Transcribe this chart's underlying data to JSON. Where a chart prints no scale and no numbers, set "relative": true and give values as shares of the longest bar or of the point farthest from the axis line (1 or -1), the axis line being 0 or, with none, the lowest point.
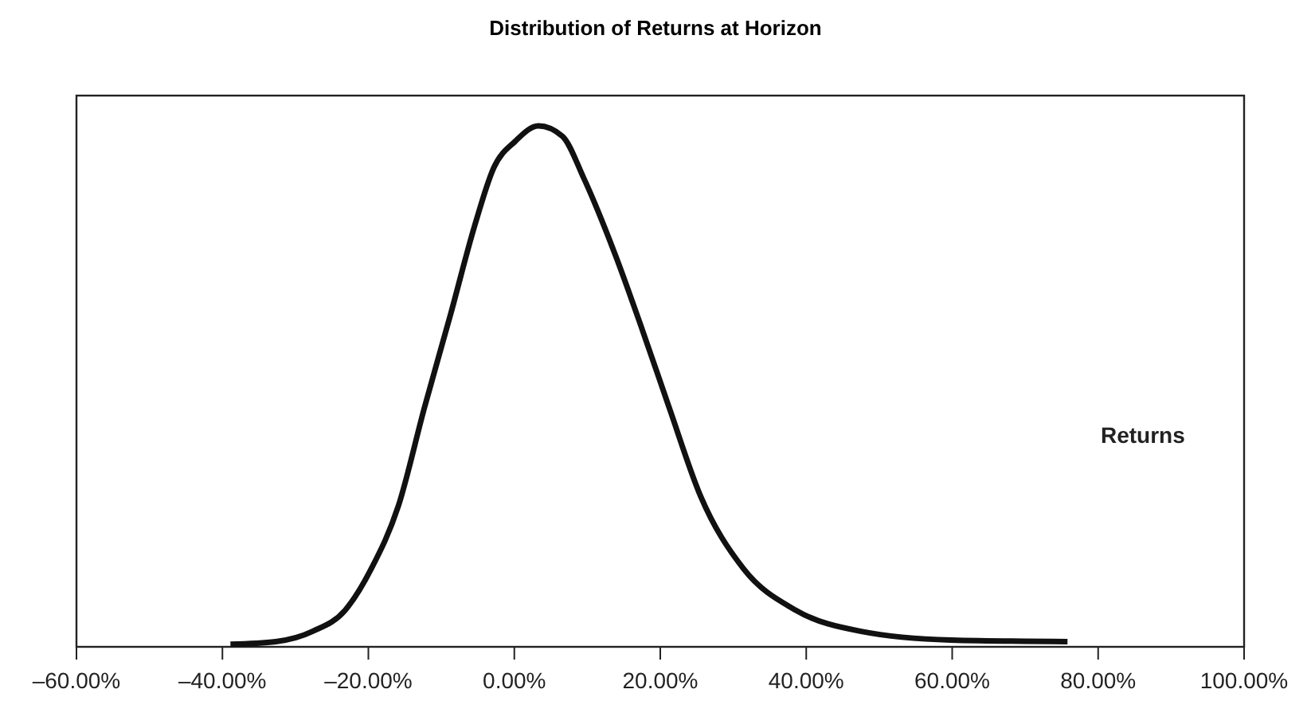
{
  "chart_data": {
    "type": "line",
    "title": "Distribution of Returns at Horizon",
    "relative": true,
    "legend": "right",
    "xlim": [
      -60,
      100
    ],
    "xticks": [
      {
        "value": -60,
        "label": "–60.00%"
      },
      {
        "value": -40,
        "label": "–40.00%"
      },
      {
        "value": -20,
        "label": "–20.00%"
      },
      {
        "value": 0,
        "label": "0.00%"
      },
      {
        "value": 20,
        "label": "20.00%"
      },
      {
        "value": 40,
        "label": "40.00%"
      },
      {
        "value": 60,
        "label": "60.00%"
      },
      {
        "value": 80,
        "label": "80.00%"
      },
      {
        "value": 100,
        "label": "100.00%"
      }
    ],
    "tick_labels": "x",
    "marker": "none",
    "line_style": "solid",
    "series": [
      {
        "name": "Returns",
        "color": "#111111",
        "x": [
          -38.9,
          -32.7,
          -27.6,
          -23.2,
          -19.6,
          -15.9,
          -12.3,
          -8.7,
          -5.4,
          -2.8,
          0.1,
          3.3,
          6.6,
          9.5,
          13.9,
          17.5,
          21.2,
          25.5,
          31.4,
          38.6,
          47.4,
          59.8,
          75.8
        ],
        "values": [
          0.005,
          0.01,
          0.03,
          0.07,
          0.15,
          0.27,
          0.46,
          0.64,
          0.81,
          0.92,
          0.97,
          1.0,
          0.98,
          0.9,
          0.75,
          0.61,
          0.46,
          0.29,
          0.15,
          0.07,
          0.03,
          0.013,
          0.01
        ]
      }
    ]
  }
}
